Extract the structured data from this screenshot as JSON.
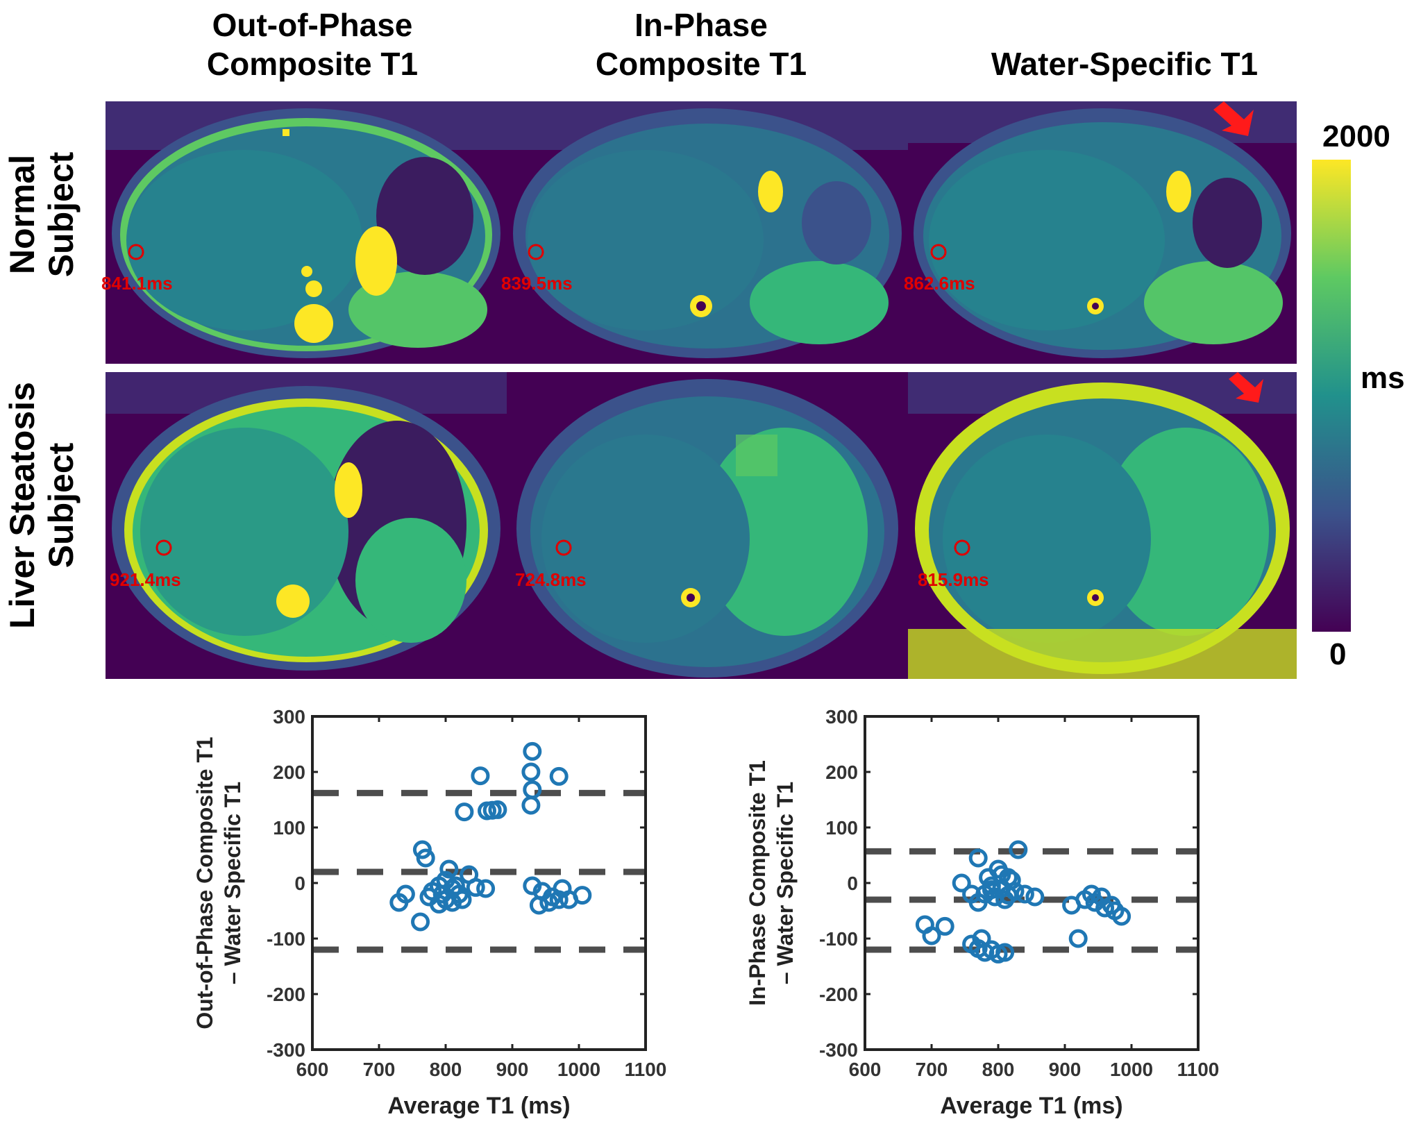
{
  "columns": [
    {
      "line1": "Out-of-Phase",
      "line2": "Composite T1"
    },
    {
      "line1": "In-Phase",
      "line2": "Composite T1"
    },
    {
      "line1": "",
      "line2": "Water-Specific T1"
    }
  ],
  "rows": [
    {
      "line1": "Normal",
      "line2": "Subject"
    },
    {
      "line1": "Liver Steatosis",
      "line2": "Subject"
    }
  ],
  "roi_values": {
    "normal": [
      "841.1ms",
      "839.5ms",
      "862.6ms"
    ],
    "steatosis": [
      "921.4ms",
      "724.8ms",
      "815.9ms"
    ]
  },
  "colorbar": {
    "max": "2000",
    "min": "0",
    "unit": "ms",
    "colors": [
      "#440154",
      "#3b528b",
      "#21918c",
      "#5ec962",
      "#fde725"
    ]
  },
  "colors": {
    "roi": "#e00000",
    "arrow": "#ff1a1a",
    "marker": "#1f77b4",
    "limit_line": "#4d4d4d"
  },
  "chart_data": [
    {
      "type": "scatter",
      "title": "",
      "xlabel": "Average T1 (ms)",
      "ylabel_line1": "Out-of-Phase Composite T1",
      "ylabel_line2": "– Water Specific T1",
      "xlim": [
        600,
        1100
      ],
      "ylim": [
        -300,
        300
      ],
      "xticks": [
        "600",
        "700",
        "800",
        "900",
        "1000",
        "1100"
      ],
      "yticks": [
        "300",
        "200",
        "100",
        "0",
        "-100",
        "-200",
        "-300"
      ],
      "hlines": [
        162,
        20,
        -120
      ],
      "points": [
        [
          930,
          237
        ],
        [
          928,
          200
        ],
        [
          970,
          192
        ],
        [
          852,
          193
        ],
        [
          930,
          168
        ],
        [
          928,
          140
        ],
        [
          828,
          128
        ],
        [
          878,
          132
        ],
        [
          862,
          130
        ],
        [
          870,
          131
        ],
        [
          765,
          60
        ],
        [
          770,
          45
        ],
        [
          805,
          25
        ],
        [
          835,
          15
        ],
        [
          790,
          -5
        ],
        [
          800,
          5
        ],
        [
          810,
          -10
        ],
        [
          780,
          -15
        ],
        [
          795,
          -20
        ],
        [
          815,
          -5
        ],
        [
          820,
          -20
        ],
        [
          800,
          -30
        ],
        [
          810,
          -35
        ],
        [
          790,
          -38
        ],
        [
          860,
          -10
        ],
        [
          845,
          -8
        ],
        [
          825,
          -30
        ],
        [
          775,
          -25
        ],
        [
          740,
          -20
        ],
        [
          730,
          -35
        ],
        [
          762,
          -70
        ],
        [
          930,
          -5
        ],
        [
          945,
          -15
        ],
        [
          960,
          -25
        ],
        [
          975,
          -10
        ],
        [
          1005,
          -22
        ],
        [
          985,
          -30
        ],
        [
          940,
          -40
        ],
        [
          955,
          -35
        ],
        [
          970,
          -30
        ]
      ]
    },
    {
      "type": "scatter",
      "title": "",
      "xlabel": "Average T1 (ms)",
      "ylabel_line1": "In-Phase Composite T1",
      "ylabel_line2": "– Water Specific T1",
      "xlim": [
        600,
        1100
      ],
      "ylim": [
        -300,
        300
      ],
      "xticks": [
        "600",
        "700",
        "800",
        "900",
        "1000",
        "1100"
      ],
      "yticks": [
        "300",
        "200",
        "100",
        "0",
        "-100",
        "-200",
        "-300"
      ],
      "hlines": [
        57,
        -30,
        -120
      ],
      "points": [
        [
          830,
          60
        ],
        [
          770,
          45
        ],
        [
          800,
          25
        ],
        [
          815,
          10
        ],
        [
          790,
          -5
        ],
        [
          805,
          -10
        ],
        [
          825,
          -15
        ],
        [
          780,
          -20
        ],
        [
          795,
          -25
        ],
        [
          810,
          -30
        ],
        [
          760,
          -20
        ],
        [
          745,
          0
        ],
        [
          840,
          -20
        ],
        [
          855,
          -25
        ],
        [
          770,
          -35
        ],
        [
          820,
          5
        ],
        [
          805,
          15
        ],
        [
          785,
          10
        ],
        [
          790,
          -12
        ],
        [
          815,
          -22
        ],
        [
          690,
          -75
        ],
        [
          720,
          -78
        ],
        [
          700,
          -95
        ],
        [
          760,
          -110
        ],
        [
          770,
          -118
        ],
        [
          780,
          -125
        ],
        [
          800,
          -128
        ],
        [
          790,
          -120
        ],
        [
          810,
          -125
        ],
        [
          775,
          -100
        ],
        [
          920,
          -100
        ],
        [
          910,
          -40
        ],
        [
          930,
          -30
        ],
        [
          945,
          -35
        ],
        [
          960,
          -45
        ],
        [
          970,
          -40
        ],
        [
          985,
          -60
        ],
        [
          955,
          -25
        ],
        [
          940,
          -20
        ],
        [
          975,
          -50
        ]
      ]
    }
  ]
}
